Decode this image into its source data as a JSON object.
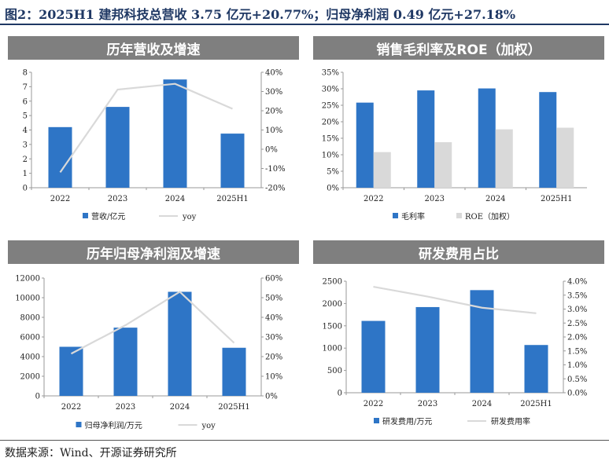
{
  "header": {
    "title": "图2：2025H1 建邦科技总营收 3.75 亿元+20.77%；归母净利润 0.49 亿元+27.18%"
  },
  "footer": {
    "source": "数据来源：Wind、开源证券研究所"
  },
  "colors": {
    "bar": "#2e75c6",
    "bar2": "#d9d9d9",
    "line": "#d9d9d9",
    "banner": "#7f7f7f",
    "header": "#1f3864"
  },
  "panels": [
    {
      "banner": "历年营收及增速"
    },
    {
      "banner": "销售毛利率及ROE（加权）"
    },
    {
      "banner": "历年归母净利润及增速"
    },
    {
      "banner": "研发费用占比"
    }
  ],
  "chart_data": [
    {
      "type": "bar",
      "title": "历年营收及增速",
      "categories": [
        "2022",
        "2023",
        "2024",
        "2025H1"
      ],
      "series": [
        {
          "name": "营收/亿元",
          "kind": "bar",
          "axis": "left",
          "values": [
            4.2,
            5.6,
            7.5,
            3.75
          ]
        },
        {
          "name": "yoy",
          "kind": "line",
          "axis": "right",
          "values": [
            -12,
            31,
            34,
            21
          ]
        }
      ],
      "ylim": [
        0,
        8
      ],
      "yticks": [
        "0",
        "1",
        "2",
        "3",
        "4",
        "5",
        "6",
        "7",
        "8"
      ],
      "y2lim": [
        -20,
        40
      ],
      "y2ticks": [
        "-20%",
        "-10%",
        "0%",
        "10%",
        "20%",
        "30%",
        "40%"
      ],
      "legend": "bottom"
    },
    {
      "type": "bar",
      "title": "销售毛利率及ROE（加权）",
      "categories": [
        "2022",
        "2023",
        "2024",
        "2025H1"
      ],
      "series": [
        {
          "name": "毛利率",
          "kind": "bar",
          "axis": "left",
          "values": [
            25.8,
            29.5,
            30.1,
            29.0
          ]
        },
        {
          "name": "ROE（加权）",
          "kind": "bar",
          "axis": "left",
          "values": [
            10.8,
            13.8,
            17.7,
            18.2
          ]
        }
      ],
      "ylim": [
        0,
        35
      ],
      "yticks": [
        "0%",
        "5%",
        "10%",
        "15%",
        "20%",
        "25%",
        "30%",
        "35%"
      ],
      "legend": "bottom"
    },
    {
      "type": "bar",
      "title": "历年归母净利润及增速",
      "categories": [
        "2022",
        "2023",
        "2024",
        "2025H1"
      ],
      "series": [
        {
          "name": "归母净利润/万元",
          "kind": "bar",
          "axis": "left",
          "values": [
            5000,
            6950,
            10600,
            4900
          ]
        },
        {
          "name": "yoy",
          "kind": "line",
          "axis": "right",
          "values": [
            21.5,
            36,
            53,
            27
          ]
        }
      ],
      "ylim": [
        0,
        12000
      ],
      "yticks": [
        "0",
        "2000",
        "4000",
        "6000",
        "8000",
        "10000",
        "12000"
      ],
      "y2lim": [
        0,
        60
      ],
      "y2ticks": [
        "0%",
        "10%",
        "20%",
        "30%",
        "40%",
        "50%",
        "60%"
      ],
      "legend": "bottom"
    },
    {
      "type": "bar",
      "title": "研发费用占比",
      "categories": [
        "2022",
        "2023",
        "2024",
        "2025H1"
      ],
      "series": [
        {
          "name": "研发费用/万元",
          "kind": "bar",
          "axis": "left",
          "values": [
            1610,
            1920,
            2300,
            1070
          ]
        },
        {
          "name": "研发费用率",
          "kind": "line",
          "axis": "right",
          "values": [
            3.8,
            3.45,
            3.05,
            2.85
          ]
        }
      ],
      "ylim": [
        0,
        2500
      ],
      "yticks": [
        "0",
        "500",
        "1000",
        "1500",
        "2000",
        "2500"
      ],
      "y2lim": [
        0,
        4
      ],
      "y2ticks": [
        "0.0%",
        "0.5%",
        "1.0%",
        "1.5%",
        "2.0%",
        "2.5%",
        "3.0%",
        "3.5%",
        "4.0%"
      ],
      "legend": "bottom"
    }
  ]
}
